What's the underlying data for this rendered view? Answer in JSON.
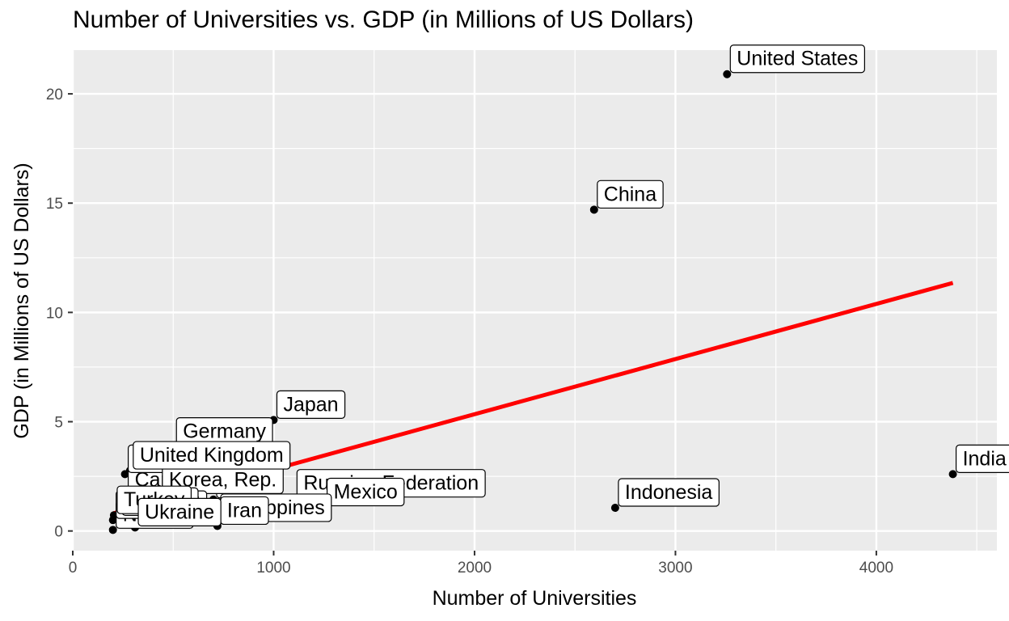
{
  "chart_data": {
    "type": "scatter",
    "title": "Number of Universities vs. GDP (in Millions of US Dollars)",
    "xlabel": "Number of Universities",
    "ylabel": "GDP (in Millions of US Dollars)",
    "xlim": [
      0,
      4600
    ],
    "ylim": [
      -0.9,
      22.0
    ],
    "x_ticks": [
      0,
      1000,
      2000,
      3000,
      4000
    ],
    "y_ticks": [
      0,
      5,
      10,
      15,
      20
    ],
    "grid": true,
    "legend": "none",
    "points": [
      {
        "label": "United States",
        "x": 3257,
        "y": 20.9
      },
      {
        "label": "China",
        "x": 2595,
        "y": 14.7
      },
      {
        "label": "India",
        "x": 4381,
        "y": 2.6
      },
      {
        "label": "Indonesia",
        "x": 2700,
        "y": 1.06
      },
      {
        "label": "Japan",
        "x": 1000,
        "y": 5.08
      },
      {
        "label": "Germany",
        "x": 500,
        "y": 3.85
      },
      {
        "label": "United Kingdom",
        "x": 285,
        "y": 2.76
      },
      {
        "label": "Russian Federation",
        "x": 1100,
        "y": 1.48
      },
      {
        "label": "Mexico",
        "x": 1250,
        "y": 1.08
      },
      {
        "label": "France",
        "x": 260,
        "y": 2.6
      },
      {
        "label": "Korea, Rep.",
        "x": 430,
        "y": 1.64
      },
      {
        "label": "Canada",
        "x": 260,
        "y": 1.64
      },
      {
        "label": "Brazil",
        "x": 700,
        "y": 1.44
      },
      {
        "label": "Philippines",
        "x": 720,
        "y": 0.36
      },
      {
        "label": "Iran",
        "x": 720,
        "y": 0.23
      },
      {
        "label": "Turkey",
        "x": 205,
        "y": 0.72
      },
      {
        "label": "Thailand",
        "x": 200,
        "y": 0.5
      },
      {
        "label": "Taiwan",
        "x": 230,
        "y": 0.64
      },
      {
        "label": "Ukraine",
        "x": 310,
        "y": 0.16
      },
      {
        "label": "Nigeria",
        "x": 200,
        "y": 0.05
      }
    ],
    "label_order": [
      "Russian Federation",
      "Mexico",
      "Indonesia",
      "China",
      "India",
      "United States",
      "Canada",
      "France",
      "Brazil",
      "Korea, Rep.",
      "Philippines",
      "Iran",
      "Nigeria",
      "Thailand",
      "Taiwan",
      "Turkey",
      "Germany",
      "Japan",
      "United Kingdom",
      "Ukraine"
    ],
    "trendline": {
      "color": "#ff0000",
      "x": [
        200,
        4381
      ],
      "y": [
        0.8,
        11.35
      ]
    }
  }
}
